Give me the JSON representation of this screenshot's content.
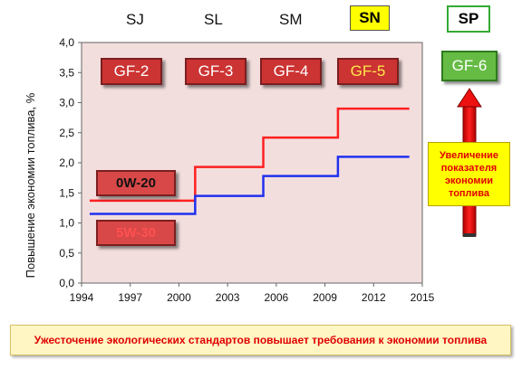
{
  "chart_data": {
    "type": "line",
    "ylabel": "Повышение экономии топлива, %",
    "xlim": [
      1994,
      2015
    ],
    "ylim": [
      0,
      4
    ],
    "x_ticks": [
      "1994",
      "1997",
      "2000",
      "2003",
      "2006",
      "2009",
      "2012",
      "2015"
    ],
    "y_ticks": [
      "0,0",
      "0,5",
      "1,0",
      "1,5",
      "2,0",
      "2,5",
      "3,0",
      "3,5",
      "4,0"
    ],
    "series": [
      {
        "name": "0W-20",
        "color": "#ff2020",
        "x": [
          1994.5,
          2001,
          2001,
          2005.2,
          2005.2,
          2009.8,
          2009.8,
          2014.2
        ],
        "y": [
          1.37,
          1.37,
          1.93,
          1.93,
          2.42,
          2.42,
          2.9,
          2.9
        ]
      },
      {
        "name": "5W-30",
        "color": "#2030ee",
        "x": [
          1994.5,
          2001,
          2001,
          2005.2,
          2005.2,
          2009.8,
          2009.8,
          2014.2
        ],
        "y": [
          1.15,
          1.15,
          1.45,
          1.45,
          1.78,
          1.78,
          2.1,
          2.1
        ]
      }
    ],
    "api_standards": [
      "SJ",
      "SL",
      "SM"
    ],
    "api_standard_new": "SN",
    "api_standard_future": "SP",
    "ilsac": [
      "GF-2",
      "GF-3",
      "GF-4"
    ],
    "ilsac_new": "GF-5",
    "ilsac_future": "GF-6"
  },
  "annotation": "Увеличение показателя экономии топлива",
  "footer_note": "Ужесточение экологических стандартов повышает требования к  экономии топлива",
  "colors": {
    "plot_bg": "#f3dede",
    "sn_bg": "#ffff00",
    "sp_bg": "#ffffff",
    "sp_border": "#33aa33",
    "arrow": "#ee1111"
  }
}
